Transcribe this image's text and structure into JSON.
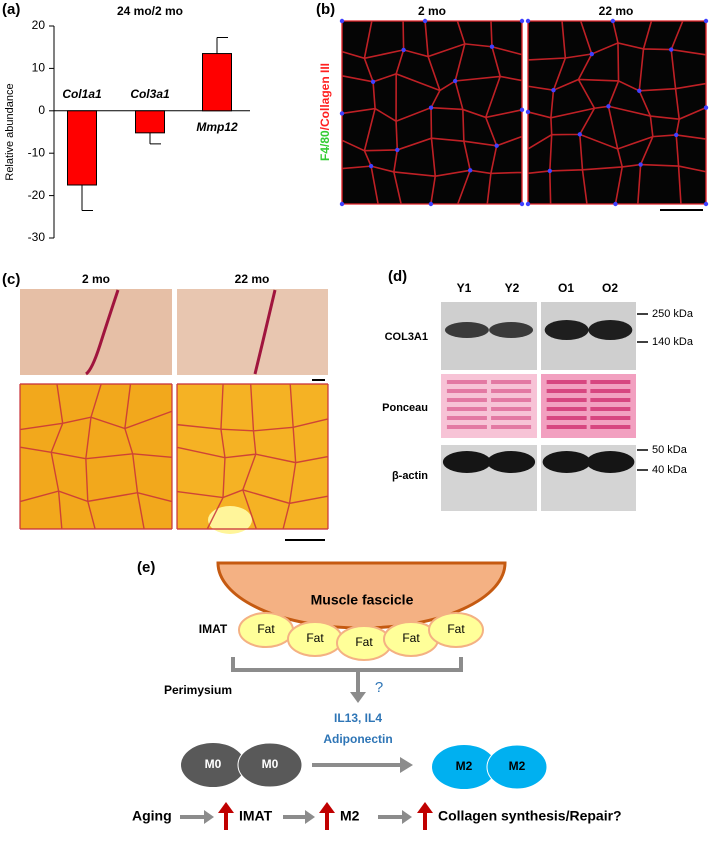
{
  "panel_labels": [
    "(a)",
    "(b)",
    "(c)",
    "(d)",
    "(e)"
  ],
  "chart_data": {
    "type": "bar",
    "title": "24 mo/2 mo",
    "y_label": "Relative abundance",
    "categories": [
      "Col1a1",
      "Col3a1",
      "Mmp12"
    ],
    "values": [
      -17.5,
      -5.2,
      13.5
    ],
    "errors": [
      6,
      2.6,
      3.8
    ],
    "color": "#ff0000",
    "ylim": [
      -30,
      20
    ],
    "yticks": [
      -30,
      -20,
      -10,
      0,
      10,
      20
    ]
  },
  "panel_b": {
    "labels": [
      "2 mo",
      "22 mo"
    ],
    "stain": [
      "F4/80",
      "/Collagen III"
    ]
  },
  "panel_c": {
    "labels": [
      "2 mo",
      "22 mo"
    ]
  },
  "panel_d": {
    "lanes": [
      "Y1",
      "Y2",
      "O1",
      "O2"
    ],
    "rows": [
      "COL3A1",
      "Ponceau",
      "β-actin"
    ],
    "markers": [
      "250 kDa",
      "140 kDa",
      "50 kDa",
      "40 kDa"
    ]
  },
  "panel_e": {
    "fascicle": "Muscle fascicle",
    "imat": "IMAT",
    "fat": [
      "Fat",
      "Fat",
      "Fat",
      "Fat",
      "Fat"
    ],
    "perimysium": "Perimysium",
    "question": "?",
    "signals": [
      "IL13, IL4",
      "Adiponectin"
    ],
    "m0": [
      "M0",
      "M0"
    ],
    "m2": [
      "M2",
      "M2"
    ],
    "pathway": [
      "Aging",
      "IMAT",
      "M2",
      "Collagen synthesis/Repair?"
    ]
  }
}
